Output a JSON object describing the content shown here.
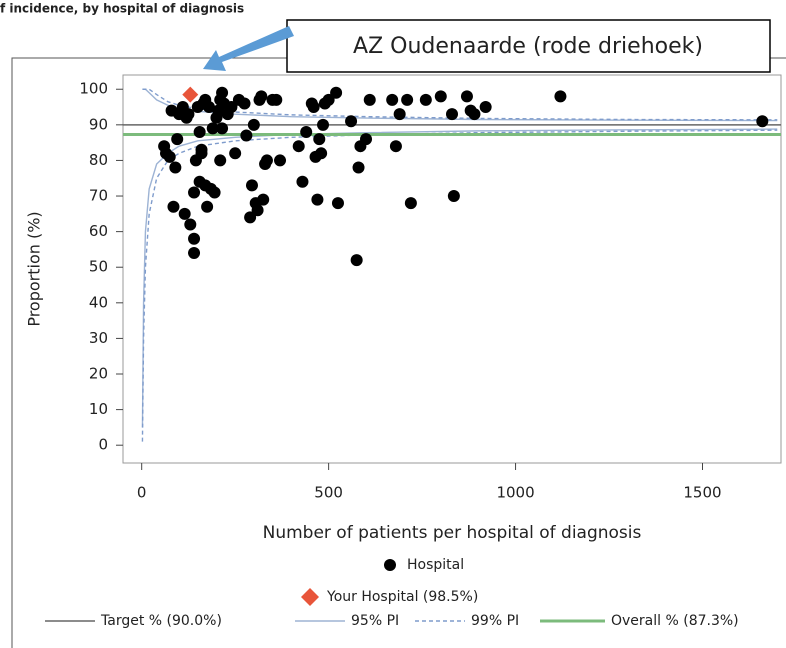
{
  "header": "f incidence, by hospital of diagnosis",
  "annotation": "AZ Oudenaarde (rode driehoek)",
  "chart_data": {
    "type": "scatter",
    "x_label": "Number of patients per hospital of diagnosis",
    "y_label": "Proportion (%)",
    "xlim": [
      -50,
      1710
    ],
    "ylim": [
      -5,
      104
    ],
    "xticks": [
      0,
      500,
      1000,
      1500
    ],
    "yticks": [
      0,
      10,
      20,
      30,
      40,
      50,
      60,
      70,
      80,
      90,
      100
    ],
    "points": [
      {
        "name": "Hospital",
        "color": "#000000",
        "marker": "circle",
        "x": [
          60,
          65,
          75,
          80,
          85,
          90,
          95,
          100,
          110,
          115,
          120,
          125,
          130,
          140,
          140,
          140,
          145,
          150,
          155,
          155,
          160,
          160,
          165,
          170,
          170,
          175,
          180,
          185,
          190,
          195,
          200,
          205,
          210,
          210,
          215,
          215,
          220,
          230,
          240,
          250,
          260,
          275,
          280,
          290,
          295,
          300,
          305,
          310,
          315,
          320,
          325,
          330,
          335,
          350,
          360,
          370,
          420,
          430,
          440,
          455,
          460,
          465,
          470,
          475,
          480,
          485,
          490,
          500,
          520,
          525,
          560,
          575,
          580,
          585,
          600,
          610,
          670,
          680,
          690,
          710,
          720,
          760,
          800,
          830,
          835,
          870,
          880,
          890,
          920,
          1120,
          1660
        ],
        "values": [
          84,
          82,
          81,
          94,
          67,
          78,
          86,
          93,
          95,
          65,
          92,
          93,
          62,
          58,
          54,
          71,
          80,
          95,
          88,
          74,
          83,
          82,
          96,
          97,
          73,
          67,
          95,
          72,
          89,
          71,
          92,
          94,
          97,
          80,
          99,
          89,
          96,
          93,
          95,
          82,
          97,
          96,
          87,
          64,
          73,
          90,
          68,
          66,
          97,
          98,
          69,
          79,
          80,
          97,
          97,
          80,
          84,
          74,
          88,
          96,
          95,
          81,
          69,
          86,
          82,
          90,
          96,
          97,
          99,
          68,
          91,
          52,
          78,
          84,
          86,
          97,
          97,
          84,
          93,
          97,
          68,
          97,
          98,
          93,
          70,
          98,
          94,
          93,
          95,
          98,
          91
        ]
      },
      {
        "name": "Your Hospital (98.5%)",
        "color": "#e8553a",
        "marker": "diamond",
        "x": [
          130
        ],
        "values": [
          98.5
        ]
      }
    ],
    "reference_lines": [
      {
        "name": "Target % (90.0%)",
        "color": "#666666",
        "value": 90
      },
      {
        "name": "Overall % (87.3%)",
        "color": "#7cbb7c",
        "value": 87.3
      }
    ],
    "limits": [
      {
        "name": "95% PI",
        "color": "#9db3d4",
        "dashed": false,
        "x": [
          2,
          5,
          10,
          20,
          40,
          70,
          100,
          150,
          250,
          400,
          600,
          900,
          1300,
          1700
        ],
        "lower": [
          5,
          40,
          60,
          72,
          79,
          82,
          84,
          85.5,
          86.5,
          87.3,
          87.8,
          88.3,
          88.6,
          88.8
        ],
        "upper": [
          100,
          100,
          100,
          99,
          97,
          95.5,
          94.5,
          93.8,
          93,
          92.3,
          91.9,
          91.5,
          91.3,
          91.2
        ]
      },
      {
        "name": "99% PI",
        "color": "#7f9ccc",
        "dashed": true,
        "x": [
          2,
          5,
          10,
          20,
          40,
          70,
          100,
          150,
          250,
          400,
          600,
          900,
          1300,
          1700
        ],
        "lower": [
          1,
          30,
          50,
          65,
          75,
          80,
          82,
          84,
          85.5,
          86.5,
          87.2,
          87.8,
          88.2,
          88.5
        ],
        "upper": [
          100,
          100,
          100,
          100,
          98.5,
          96.5,
          95.5,
          94.5,
          93.6,
          92.8,
          92.3,
          91.8,
          91.5,
          91.4
        ]
      }
    ]
  }
}
